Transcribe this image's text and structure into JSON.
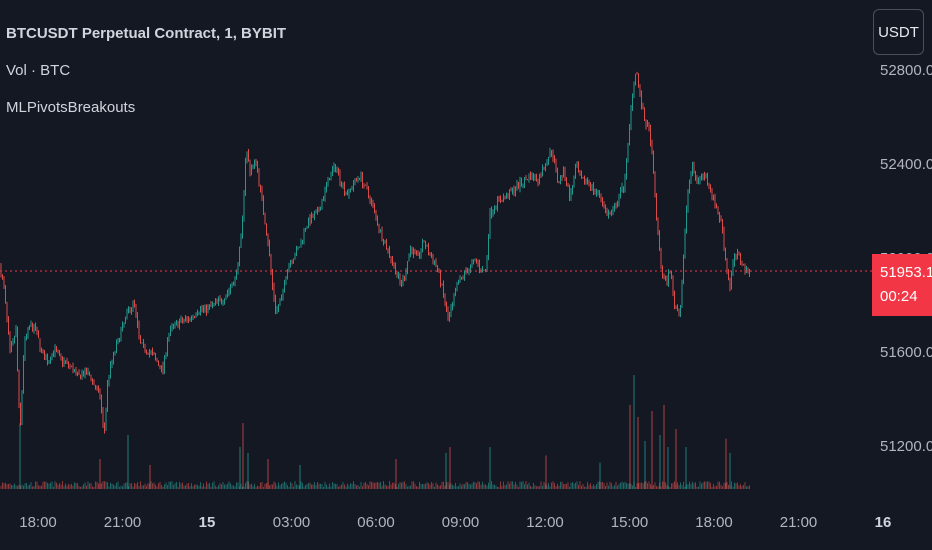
{
  "legend": {
    "symbol": "BTCUSDT Perpetual Contract, 1, BYBIT",
    "volume": "Vol · BTC",
    "indicator": "MLPivotsBreakouts"
  },
  "currency_button": "USDT",
  "last_price": {
    "value": "51953.1",
    "countdown": "00:24",
    "color": "#f23645"
  },
  "colors": {
    "background": "#141823",
    "up": "#26a69a",
    "down": "#ef5350"
  },
  "chart_data": {
    "type": "candlestick",
    "y_ticks": [
      "52800.0",
      "52400.0",
      "52000.0",
      "51600.0",
      "51200.0"
    ],
    "ylim": [
      51050,
      52880
    ],
    "x_ticks": [
      {
        "label": "18:00",
        "bold": false
      },
      {
        "label": "21:00",
        "bold": false
      },
      {
        "label": "15",
        "bold": true
      },
      {
        "label": "03:00",
        "bold": false
      },
      {
        "label": "06:00",
        "bold": false
      },
      {
        "label": "09:00",
        "bold": false
      },
      {
        "label": "12:00",
        "bold": false
      },
      {
        "label": "15:00",
        "bold": false
      },
      {
        "label": "18:00",
        "bold": false
      },
      {
        "label": "21:00",
        "bold": false
      },
      {
        "label": "16",
        "bold": true
      }
    ],
    "last_price": 51953.1,
    "price_path": [
      [
        0,
        51970
      ],
      [
        4,
        51880
      ],
      [
        10,
        51600
      ],
      [
        16,
        51700
      ],
      [
        20,
        51250
      ],
      [
        24,
        51640
      ],
      [
        30,
        51720
      ],
      [
        36,
        51700
      ],
      [
        42,
        51600
      ],
      [
        48,
        51570
      ],
      [
        54,
        51620
      ],
      [
        60,
        51580
      ],
      [
        66,
        51560
      ],
      [
        72,
        51540
      ],
      [
        78,
        51500
      ],
      [
        84,
        51520
      ],
      [
        90,
        51510
      ],
      [
        96,
        51450
      ],
      [
        100,
        51420
      ],
      [
        104,
        51250
      ],
      [
        108,
        51500
      ],
      [
        114,
        51600
      ],
      [
        120,
        51680
      ],
      [
        128,
        51780
      ],
      [
        134,
        51820
      ],
      [
        140,
        51640
      ],
      [
        146,
        51620
      ],
      [
        152,
        51600
      ],
      [
        158,
        51560
      ],
      [
        163,
        51530
      ],
      [
        168,
        51680
      ],
      [
        174,
        51720
      ],
      [
        182,
        51740
      ],
      [
        190,
        51750
      ],
      [
        198,
        51790
      ],
      [
        206,
        51790
      ],
      [
        214,
        51810
      ],
      [
        222,
        51830
      ],
      [
        230,
        51880
      ],
      [
        236,
        51930
      ],
      [
        242,
        52120
      ],
      [
        246,
        52480
      ],
      [
        250,
        52380
      ],
      [
        256,
        52420
      ],
      [
        262,
        52250
      ],
      [
        268,
        52080
      ],
      [
        272,
        51900
      ],
      [
        276,
        51780
      ],
      [
        282,
        51840
      ],
      [
        288,
        51980
      ],
      [
        294,
        52020
      ],
      [
        300,
        52060
      ],
      [
        306,
        52150
      ],
      [
        312,
        52180
      ],
      [
        318,
        52200
      ],
      [
        324,
        52280
      ],
      [
        330,
        52360
      ],
      [
        336,
        52400
      ],
      [
        342,
        52320
      ],
      [
        348,
        52280
      ],
      [
        354,
        52330
      ],
      [
        360,
        52360
      ],
      [
        366,
        52300
      ],
      [
        372,
        52240
      ],
      [
        378,
        52150
      ],
      [
        384,
        52080
      ],
      [
        390,
        52020
      ],
      [
        396,
        51950
      ],
      [
        400,
        51900
      ],
      [
        404,
        51920
      ],
      [
        410,
        52050
      ],
      [
        418,
        52010
      ],
      [
        424,
        52080
      ],
      [
        430,
        52020
      ],
      [
        436,
        51980
      ],
      [
        440,
        51920
      ],
      [
        444,
        51840
      ],
      [
        448,
        51740
      ],
      [
        452,
        51800
      ],
      [
        458,
        51900
      ],
      [
        464,
        51940
      ],
      [
        470,
        51970
      ],
      [
        476,
        52000
      ],
      [
        482,
        51950
      ],
      [
        486,
        51960
      ],
      [
        490,
        52200
      ],
      [
        498,
        52250
      ],
      [
        506,
        52270
      ],
      [
        514,
        52300
      ],
      [
        522,
        52330
      ],
      [
        530,
        52360
      ],
      [
        538,
        52340
      ],
      [
        546,
        52420
      ],
      [
        552,
        52470
      ],
      [
        558,
        52330
      ],
      [
        564,
        52380
      ],
      [
        570,
        52260
      ],
      [
        576,
        52400
      ],
      [
        582,
        52330
      ],
      [
        588,
        52340
      ],
      [
        594,
        52290
      ],
      [
        600,
        52280
      ],
      [
        606,
        52200
      ],
      [
        612,
        52190
      ],
      [
        618,
        52260
      ],
      [
        624,
        52320
      ],
      [
        628,
        52480
      ],
      [
        632,
        52700
      ],
      [
        636,
        52820
      ],
      [
        640,
        52700
      ],
      [
        644,
        52600
      ],
      [
        650,
        52540
      ],
      [
        654,
        52330
      ],
      [
        658,
        52100
      ],
      [
        662,
        51940
      ],
      [
        666,
        51900
      ],
      [
        670,
        51960
      ],
      [
        674,
        51820
      ],
      [
        680,
        51770
      ],
      [
        684,
        52050
      ],
      [
        688,
        52300
      ],
      [
        692,
        52400
      ],
      [
        696,
        52340
      ],
      [
        700,
        52350
      ],
      [
        706,
        52360
      ],
      [
        712,
        52280
      ],
      [
        718,
        52200
      ],
      [
        722,
        52150
      ],
      [
        726,
        51980
      ],
      [
        730,
        51890
      ],
      [
        734,
        52010
      ],
      [
        738,
        52020
      ],
      [
        742,
        51990
      ],
      [
        746,
        51950
      ],
      [
        750,
        51953
      ]
    ],
    "volume_spikes": [
      [
        20,
        0.55
      ],
      [
        100,
        0.25
      ],
      [
        128,
        0.45
      ],
      [
        150,
        0.2
      ],
      [
        240,
        0.35
      ],
      [
        243,
        0.55
      ],
      [
        248,
        0.3
      ],
      [
        268,
        0.25
      ],
      [
        300,
        0.2
      ],
      [
        396,
        0.25
      ],
      [
        446,
        0.3
      ],
      [
        450,
        0.35
      ],
      [
        490,
        0.35
      ],
      [
        546,
        0.28
      ],
      [
        600,
        0.22
      ],
      [
        630,
        0.7
      ],
      [
        634,
        0.95
      ],
      [
        638,
        0.6
      ],
      [
        645,
        0.4
      ],
      [
        652,
        0.65
      ],
      [
        660,
        0.45
      ],
      [
        664,
        0.7
      ],
      [
        668,
        0.35
      ],
      [
        676,
        0.5
      ],
      [
        686,
        0.35
      ],
      [
        726,
        0.42
      ],
      [
        730,
        0.3
      ]
    ]
  }
}
